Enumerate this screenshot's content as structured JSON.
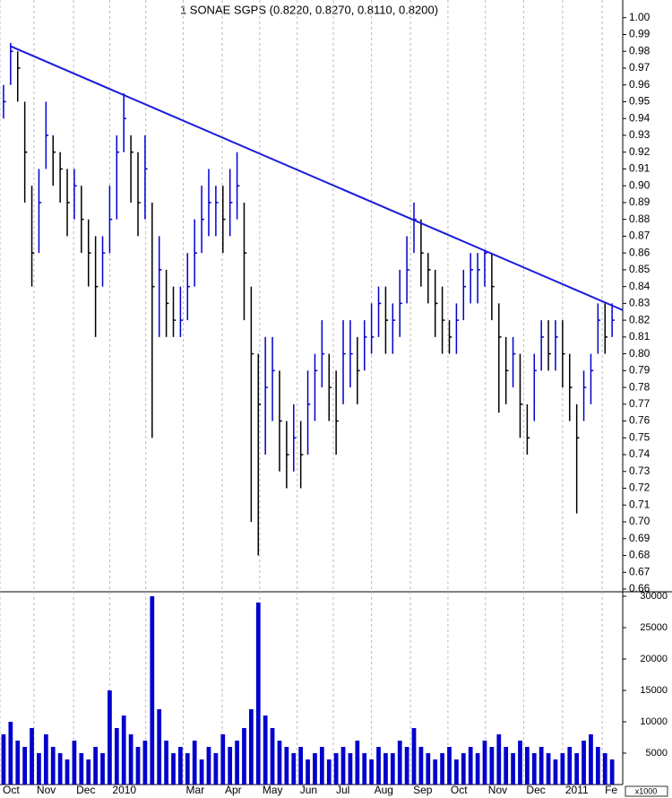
{
  "chart_data": {
    "type": "ohlc",
    "title": "1 SONAE SGPS (0.8220, 0.8270, 0.8110, 0.8200)",
    "up_color": "#0000cc",
    "down_color": "#000000",
    "high": [
      0.96,
      0.985,
      0.98,
      0.95,
      0.9,
      0.91,
      0.95,
      0.93,
      0.92,
      0.91,
      0.91,
      0.9,
      0.88,
      0.87,
      0.87,
      0.9,
      0.93,
      0.955,
      0.93,
      0.92,
      0.93,
      0.89,
      0.87,
      0.85,
      0.84,
      0.84,
      0.86,
      0.88,
      0.9,
      0.91,
      0.9,
      0.9,
      0.91,
      0.92,
      0.89,
      0.84,
      0.8,
      0.81,
      0.81,
      0.79,
      0.76,
      0.77,
      0.76,
      0.79,
      0.8,
      0.82,
      0.8,
      0.79,
      0.82,
      0.82,
      0.81,
      0.82,
      0.83,
      0.84,
      0.84,
      0.83,
      0.85,
      0.87,
      0.89,
      0.88,
      0.86,
      0.85,
      0.84,
      0.82,
      0.83,
      0.85,
      0.86,
      0.86,
      0.862,
      0.86,
      0.83,
      0.81,
      0.81,
      0.8,
      0.77,
      0.8,
      0.82,
      0.82,
      0.82,
      0.82,
      0.8,
      0.77,
      0.79,
      0.8,
      0.83,
      0.83,
      0.83
    ],
    "low": [
      0.94,
      0.96,
      0.95,
      0.89,
      0.84,
      0.86,
      0.91,
      0.9,
      0.89,
      0.87,
      0.88,
      0.86,
      0.84,
      0.81,
      0.84,
      0.86,
      0.88,
      0.92,
      0.89,
      0.87,
      0.88,
      0.75,
      0.81,
      0.81,
      0.81,
      0.81,
      0.82,
      0.84,
      0.86,
      0.87,
      0.87,
      0.86,
      0.87,
      0.88,
      0.82,
      0.7,
      0.68,
      0.74,
      0.76,
      0.73,
      0.72,
      0.73,
      0.72,
      0.74,
      0.76,
      0.78,
      0.76,
      0.74,
      0.77,
      0.78,
      0.77,
      0.79,
      0.8,
      0.81,
      0.8,
      0.8,
      0.81,
      0.83,
      0.86,
      0.84,
      0.83,
      0.81,
      0.8,
      0.8,
      0.8,
      0.82,
      0.83,
      0.83,
      0.84,
      0.82,
      0.765,
      0.77,
      0.78,
      0.75,
      0.74,
      0.76,
      0.79,
      0.79,
      0.79,
      0.78,
      0.76,
      0.705,
      0.76,
      0.77,
      0.8,
      0.8,
      0.81
    ],
    "close": [
      0.95,
      0.98,
      0.97,
      0.92,
      0.86,
      0.89,
      0.93,
      0.92,
      0.91,
      0.89,
      0.9,
      0.88,
      0.86,
      0.84,
      0.86,
      0.88,
      0.92,
      0.94,
      0.92,
      0.89,
      0.91,
      0.84,
      0.85,
      0.83,
      0.82,
      0.82,
      0.84,
      0.86,
      0.88,
      0.89,
      0.89,
      0.88,
      0.89,
      0.9,
      0.86,
      0.8,
      0.77,
      0.78,
      0.79,
      0.76,
      0.74,
      0.75,
      0.74,
      0.77,
      0.79,
      0.8,
      0.78,
      0.76,
      0.8,
      0.8,
      0.79,
      0.81,
      0.81,
      0.83,
      0.82,
      0.82,
      0.83,
      0.85,
      0.88,
      0.86,
      0.85,
      0.83,
      0.82,
      0.81,
      0.82,
      0.84,
      0.85,
      0.85,
      0.86,
      0.84,
      0.81,
      0.79,
      0.8,
      0.77,
      0.75,
      0.79,
      0.81,
      0.8,
      0.81,
      0.8,
      0.78,
      0.75,
      0.78,
      0.79,
      0.82,
      0.81,
      0.82
    ],
    "trendline": {
      "color": "#1a1adb",
      "x": [
        1,
        87.5
      ],
      "y": [
        0.983,
        0.826
      ]
    },
    "xlim": [
      -0.5,
      87.5
    ],
    "xticks": [
      {
        "value": -0.5,
        "label": "Oct"
      },
      {
        "value": 4.3,
        "label": "Nov"
      },
      {
        "value": 9.9,
        "label": "Dec"
      },
      {
        "value": 15,
        "label": "2010"
      },
      {
        "value": 20.1,
        "label": null
      },
      {
        "value": 25.4,
        "label": "Mar"
      },
      {
        "value": 30.9,
        "label": "Apr"
      },
      {
        "value": 36.2,
        "label": "May"
      },
      {
        "value": 41.5,
        "label": "Jun"
      },
      {
        "value": 46.6,
        "label": "Jul"
      },
      {
        "value": 52,
        "label": "Aug"
      },
      {
        "value": 57.5,
        "label": "Sep"
      },
      {
        "value": 62.8,
        "label": "Oct"
      },
      {
        "value": 68.1,
        "label": "Nov"
      },
      {
        "value": 73.5,
        "label": "Dec"
      },
      {
        "value": 79,
        "label": "2011"
      },
      {
        "value": 84.6,
        "label": "Fe"
      }
    ],
    "ylim": [
      0.66,
      1.01
    ],
    "yticks": [
      0.66,
      0.67,
      0.68,
      0.69,
      {
        "value": 0.7,
        "label": "0.70"
      },
      0.71,
      0.72,
      0.73,
      0.74,
      0.75,
      0.76,
      0.77,
      0.78,
      0.79,
      {
        "value": 0.8,
        "label": "0.80"
      },
      0.81,
      0.82,
      0.83,
      0.84,
      0.85,
      0.86,
      0.87,
      0.88,
      0.89,
      {
        "value": 0.9,
        "label": "0.90"
      },
      0.91,
      0.92,
      0.93,
      0.94,
      0.95,
      0.96,
      0.97,
      0.98,
      0.99,
      {
        "value": 1.0,
        "label": "1.00"
      }
    ],
    "volume": {
      "color": "#0000cc",
      "unit_label": "x1000",
      "values": [
        8000,
        10000,
        7000,
        6000,
        9000,
        5000,
        8000,
        6000,
        5000,
        4000,
        7000,
        5000,
        4000,
        6000,
        5000,
        15000,
        9000,
        11000,
        8000,
        6000,
        7000,
        30000,
        12000,
        7000,
        5000,
        6000,
        5000,
        7000,
        4000,
        6000,
        5000,
        8000,
        6000,
        7000,
        9000,
        12000,
        29000,
        11000,
        9000,
        7000,
        6000,
        5000,
        6000,
        4000,
        5000,
        6000,
        4000,
        5000,
        6000,
        5000,
        7000,
        5000,
        4000,
        6000,
        5000,
        5000,
        7000,
        6000,
        9000,
        6000,
        5000,
        4000,
        5000,
        6000,
        4000,
        5000,
        6000,
        5000,
        7000,
        6000,
        8000,
        6000,
        5000,
        7000,
        6000,
        5000,
        6000,
        5000,
        4000,
        5000,
        6000,
        5000,
        7000,
        8000,
        6000,
        5000,
        4000
      ],
      "ylim": [
        0,
        31000
      ],
      "yticks": [
        5000,
        10000,
        15000,
        20000,
        25000,
        30000
      ]
    },
    "grid": true
  }
}
